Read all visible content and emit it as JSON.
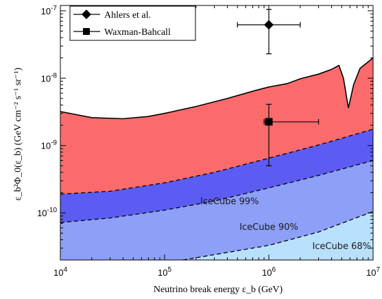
{
  "chart_data": {
    "type": "area",
    "xlabel": "Neutrino break energy ε_b (GeV)",
    "ylabel": "ε_b²Φ_0(ε_b) (GeV cm⁻² s⁻¹ sr⁻¹)",
    "xscale": "log",
    "yscale": "log",
    "xlim": [
      10000,
      10000000
    ],
    "ylim": [
      2e-11,
      1.2e-07
    ],
    "x_ticks": [
      {
        "value": 10000,
        "base": "10",
        "exp": "4"
      },
      {
        "value": 100000,
        "base": "10",
        "exp": "5"
      },
      {
        "value": 1000000,
        "base": "10",
        "exp": "6"
      },
      {
        "value": 10000000,
        "base": "10",
        "exp": "7"
      }
    ],
    "y_ticks": [
      {
        "value": 1e-10,
        "base": "10",
        "exp": "-10"
      },
      {
        "value": 1e-09,
        "base": "10",
        "exp": "-9"
      },
      {
        "value": 1e-08,
        "base": "10",
        "exp": "-8"
      },
      {
        "value": 1e-07,
        "base": "10",
        "exp": "-7"
      }
    ],
    "legend_position": "top-left",
    "colors": {
      "red_region": "#fc6b6b",
      "band_99": "#5c5cf3",
      "band_90": "#8d9ff7",
      "band_68": "#b9e0fb"
    },
    "exclusion_region": {
      "x": [
        10000,
        20000,
        40000,
        70000,
        100000,
        200000,
        400000,
        700000,
        1000000,
        1500000,
        2000000,
        3000000,
        4000000,
        4700000,
        5200000,
        5800000,
        6500000,
        7500000,
        10000000
      ],
      "y": [
        3.2e-09,
        2.6e-09,
        2.5e-09,
        2.7e-09,
        3e-09,
        3.8e-09,
        5e-09,
        6.4e-09,
        7.4e-09,
        8.3e-09,
        9.8e-09,
        1.15e-08,
        1.35e-08,
        1.55e-08,
        1e-08,
        3.6e-09,
        8e-09,
        1.4e-08,
        2e-08
      ]
    },
    "sensitivity_curves": [
      {
        "name": "IceCube 99%",
        "x": [
          10000,
          30000,
          100000,
          300000,
          1000000,
          3000000,
          10000000
        ],
        "y": [
          1.9e-10,
          2.1e-10,
          2.8e-10,
          4e-10,
          6.5e-10,
          1.02e-09,
          1.75e-09
        ]
      },
      {
        "name": "IceCube 90%",
        "x": [
          10000,
          30000,
          100000,
          300000,
          1000000,
          3000000,
          10000000
        ],
        "y": [
          7.2e-11,
          8.4e-11,
          1.1e-10,
          1.5e-10,
          2.35e-10,
          3.6e-10,
          6e-10
        ]
      },
      {
        "name": "IceCube 68%",
        "x": [
          150000,
          300000,
          1000000,
          3000000,
          10000000
        ],
        "y": [
          2e-11,
          2.4e-11,
          3.3e-11,
          5.2e-11,
          1.05e-10
        ]
      }
    ],
    "band_labels": [
      {
        "text": "IceCube 99%",
        "x": 420000,
        "y": 1.35e-10
      },
      {
        "text": "IceCube 90%",
        "x": 1000000,
        "y": 5.6e-11
      },
      {
        "text": "IceCube 68%",
        "x": 5000000,
        "y": 2.9e-11
      }
    ],
    "series": [
      {
        "name": "Ahlers et al.",
        "marker": "diamond",
        "x": 1000000,
        "y": 6.2e-08,
        "xerr": [
          500000,
          2000000
        ],
        "yerr": [
          2.3e-08,
          1.05e-07
        ]
      },
      {
        "name": "Waxman-Bahcall",
        "marker": "square",
        "x": 1000000,
        "y": 2.25e-09,
        "xerr": [
          900000,
          3000000
        ],
        "yerr": [
          5e-10,
          4.1e-09
        ]
      }
    ]
  }
}
